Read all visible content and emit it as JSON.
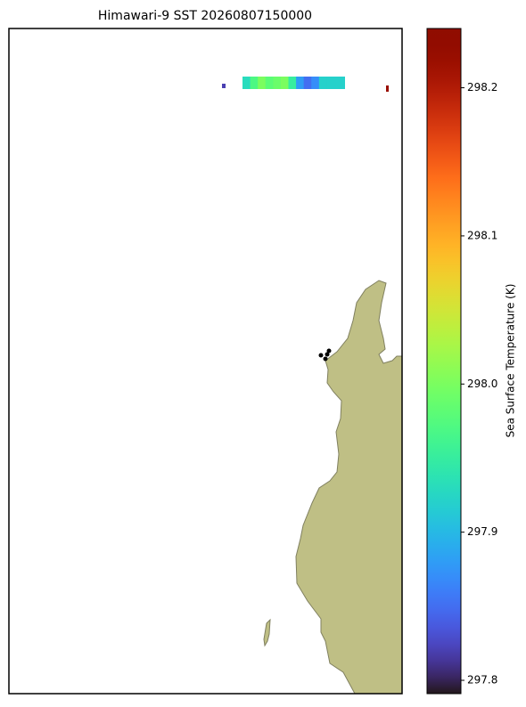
{
  "chart_data": {
    "type": "map",
    "title": "Himawari-9 SST 20260807150000",
    "colorbar": {
      "label": "Sea Surface Temperature (K)",
      "colormap": "turbo",
      "lim": [
        297.791,
        298.24
      ],
      "ticks": [
        297.8,
        297.9,
        {
          "value": 298,
          "label": "298.0"
        },
        298.1,
        298.2
      ]
    },
    "sst_values": [
      297.82,
      298.22,
      297.93,
      297.97,
      298.0,
      297.98,
      297.99,
      298.0,
      297.95,
      297.88,
      297.85,
      297.87,
      297.92,
      297.92
    ]
  }
}
